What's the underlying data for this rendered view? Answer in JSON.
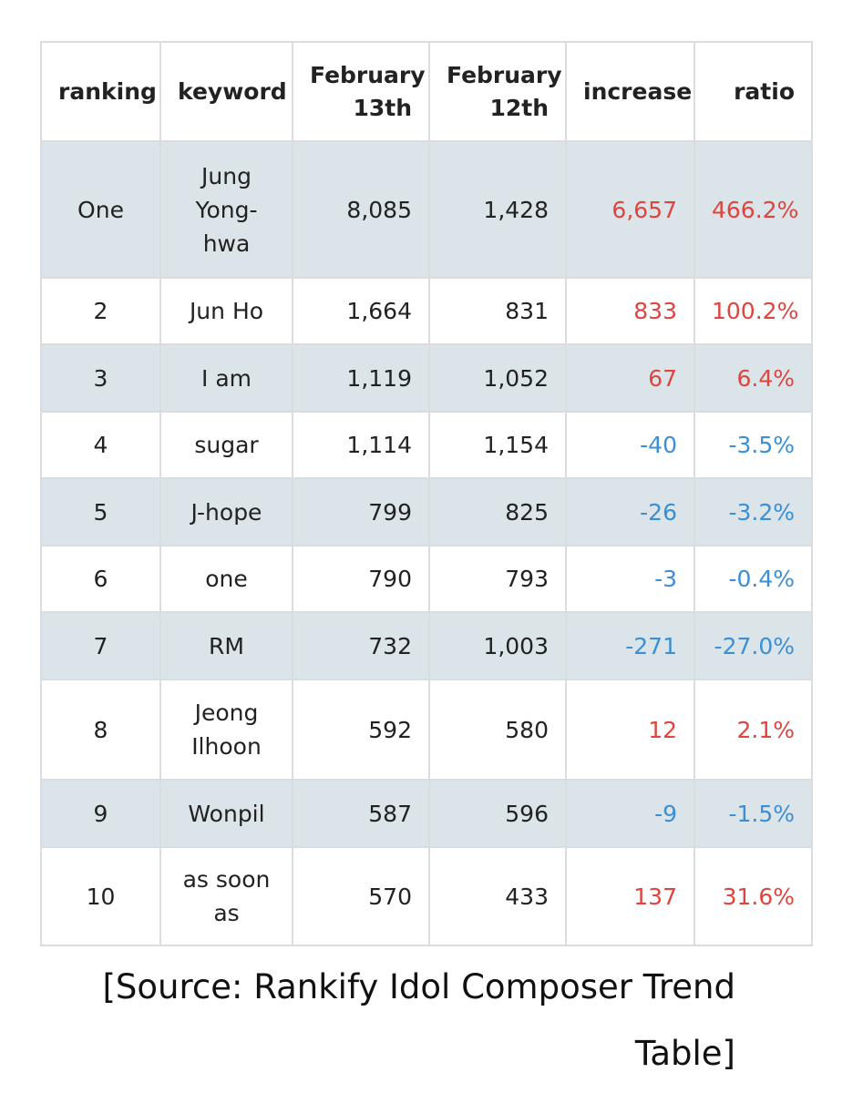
{
  "table": {
    "headers": {
      "ranking": "ranking",
      "keyword": "keyword",
      "feb13_line1": "February",
      "feb13_line2": "13th",
      "feb12_line1": "February",
      "feb12_line2": "12th",
      "increase": "increase",
      "ratio": "ratio"
    },
    "rows": [
      {
        "rank": "One",
        "keyword": "Jung Yong-hwa",
        "feb13": "8,085",
        "feb12": "1,428",
        "increase": "6,657",
        "ratio": "466.2%",
        "trend": "up"
      },
      {
        "rank": "2",
        "keyword": "Jun Ho",
        "feb13": "1,664",
        "feb12": "831",
        "increase": "833",
        "ratio": "100.2%",
        "trend": "up"
      },
      {
        "rank": "3",
        "keyword": "I am",
        "feb13": "1,119",
        "feb12": "1,052",
        "increase": "67",
        "ratio": "6.4%",
        "trend": "up"
      },
      {
        "rank": "4",
        "keyword": "sugar",
        "feb13": "1,114",
        "feb12": "1,154",
        "increase": "-40",
        "ratio": "-3.5%",
        "trend": "down"
      },
      {
        "rank": "5",
        "keyword": "J-hope",
        "feb13": "799",
        "feb12": "825",
        "increase": "-26",
        "ratio": "-3.2%",
        "trend": "down"
      },
      {
        "rank": "6",
        "keyword": "one",
        "feb13": "790",
        "feb12": "793",
        "increase": "-3",
        "ratio": "-0.4%",
        "trend": "down"
      },
      {
        "rank": "7",
        "keyword": "RM",
        "feb13": "732",
        "feb12": "1,003",
        "increase": "-271",
        "ratio": "-27.0%",
        "trend": "down"
      },
      {
        "rank": "8",
        "keyword": "Jeong Ilhoon",
        "feb13": "592",
        "feb12": "580",
        "increase": "12",
        "ratio": "2.1%",
        "trend": "up"
      },
      {
        "rank": "9",
        "keyword": "Wonpil",
        "feb13": "587",
        "feb12": "596",
        "increase": "-9",
        "ratio": "-1.5%",
        "trend": "down"
      },
      {
        "rank": "10",
        "keyword": "as soon as",
        "feb13": "570",
        "feb12": "433",
        "increase": "137",
        "ratio": "31.6%",
        "trend": "up"
      }
    ]
  },
  "source": {
    "line1": "[Source: Rankify Idol Composer Trend",
    "line2": "Table]"
  },
  "colors": {
    "positive": "#e0443e",
    "negative": "#3a8fd6",
    "row_shade": "#dbe4e8",
    "border": "#d9dde0"
  }
}
